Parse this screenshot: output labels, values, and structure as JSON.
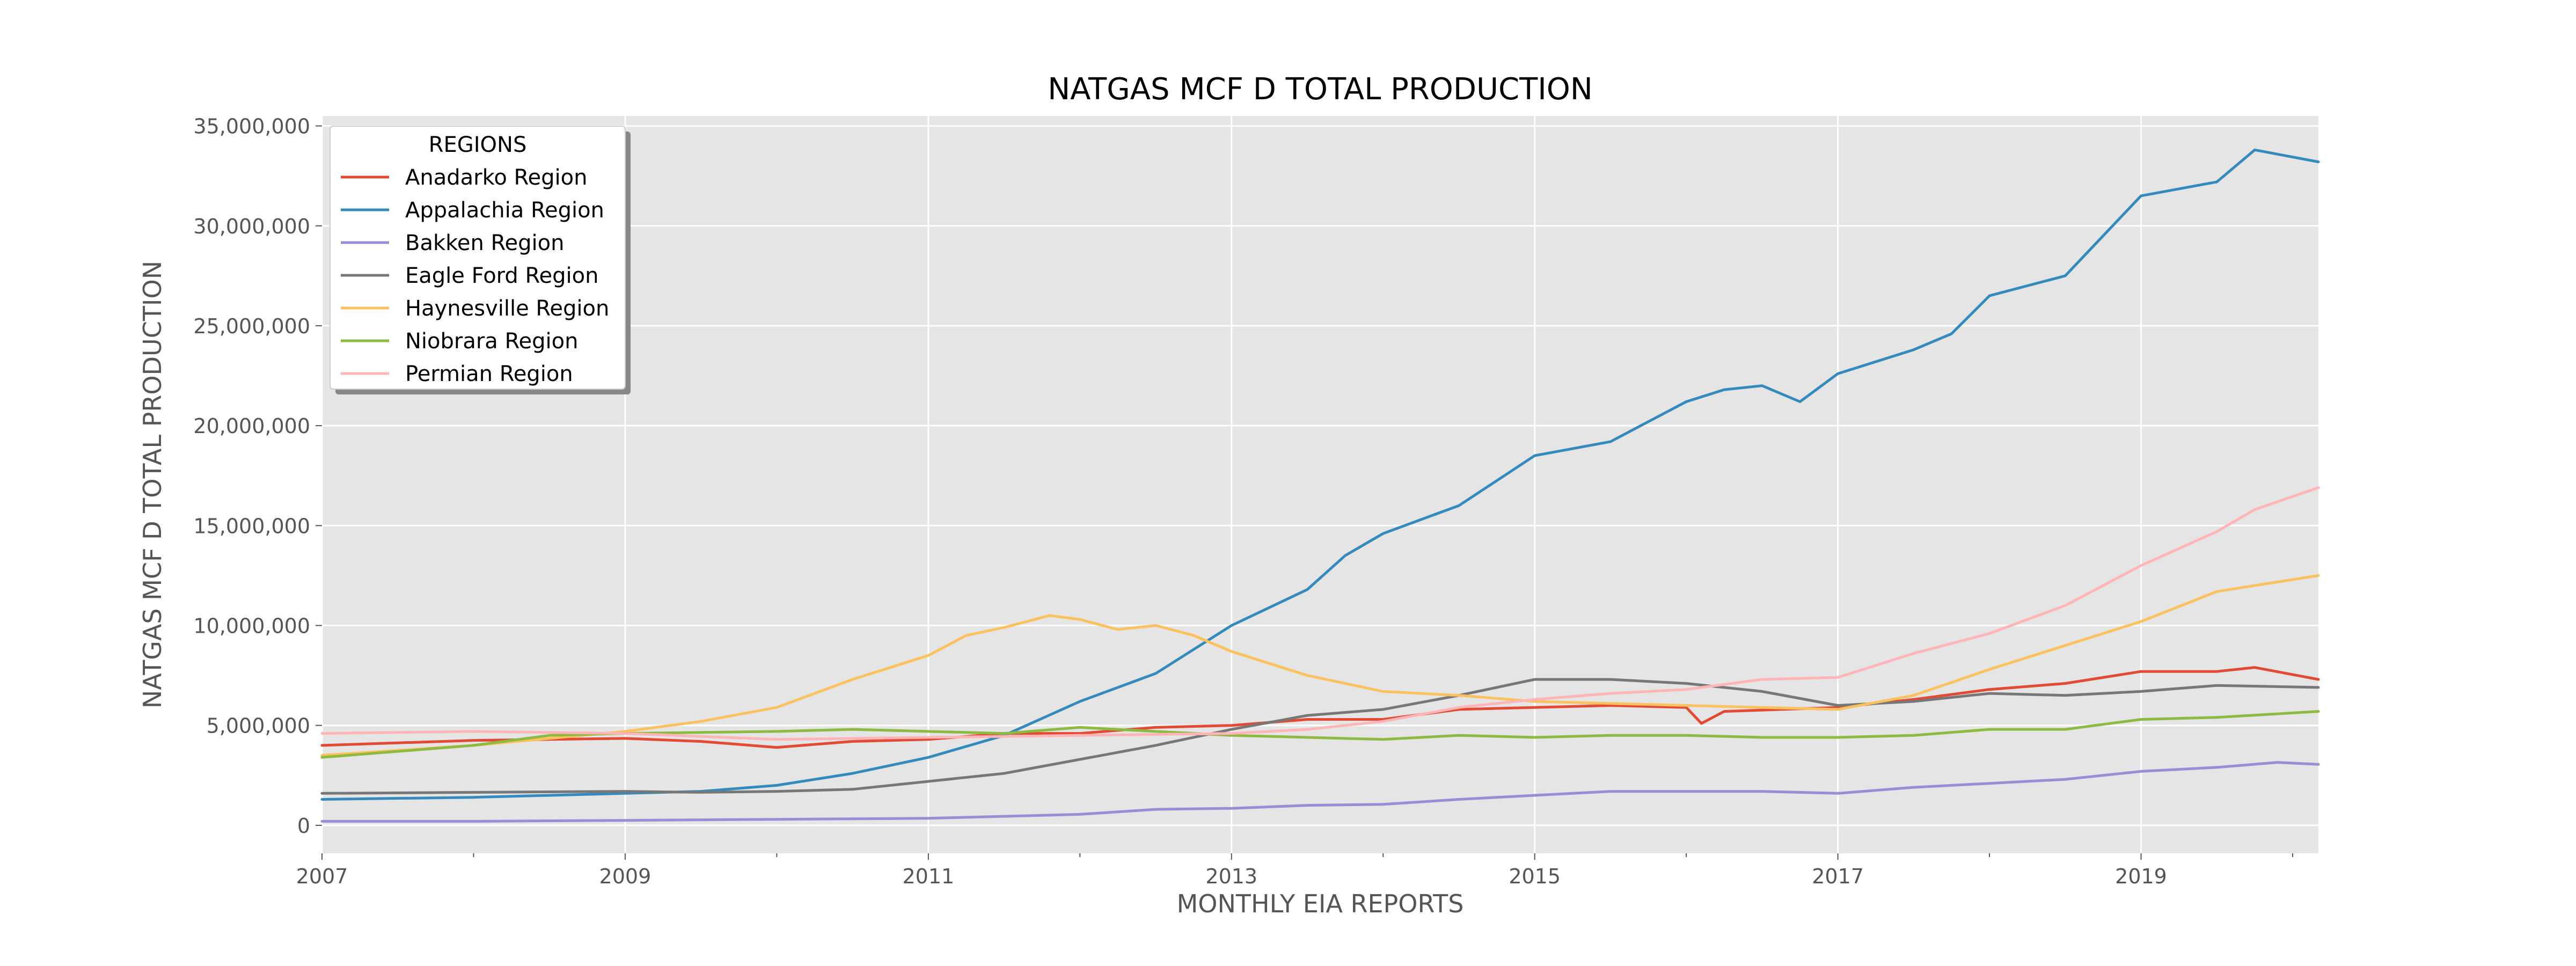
{
  "chart_data": {
    "type": "line",
    "title": "NATGAS MCF D TOTAL PRODUCTION",
    "xlabel": "MONTHLY EIA REPORTS",
    "ylabel": "NATGAS MCF D TOTAL PRODUCTION",
    "xlim": [
      2007.0,
      2020.17
    ],
    "ylim": [
      -1400000,
      35500000
    ],
    "x_ticks": [
      2007,
      2009,
      2011,
      2013,
      2015,
      2017,
      2019
    ],
    "y_ticks": [
      0,
      5000000,
      10000000,
      15000000,
      20000000,
      25000000,
      30000000,
      35000000
    ],
    "y_tick_labels": [
      "0",
      "5,000,000",
      "10,000,000",
      "15,000,000",
      "20,000,000",
      "25,000,000",
      "30,000,000",
      "35,000,000"
    ],
    "grid": true,
    "legend": {
      "title": "REGIONS",
      "placement": "top-left"
    },
    "series": [
      {
        "name": "Anadarko Region",
        "color": "#E24A33",
        "points": [
          [
            2007.0,
            4000000
          ],
          [
            2008.0,
            4250000
          ],
          [
            2008.5,
            4300000
          ],
          [
            2009.0,
            4350000
          ],
          [
            2009.5,
            4200000
          ],
          [
            2010.0,
            3900000
          ],
          [
            2010.5,
            4200000
          ],
          [
            2011.0,
            4300000
          ],
          [
            2011.5,
            4600000
          ],
          [
            2012.0,
            4600000
          ],
          [
            2012.5,
            4900000
          ],
          [
            2013.0,
            5000000
          ],
          [
            2013.5,
            5300000
          ],
          [
            2014.0,
            5300000
          ],
          [
            2014.5,
            5800000
          ],
          [
            2015.0,
            5900000
          ],
          [
            2015.5,
            6000000
          ],
          [
            2016.0,
            5900000
          ],
          [
            2016.1,
            5100000
          ],
          [
            2016.25,
            5700000
          ],
          [
            2017.0,
            5900000
          ],
          [
            2017.5,
            6300000
          ],
          [
            2018.0,
            6800000
          ],
          [
            2018.5,
            7100000
          ],
          [
            2019.0,
            7700000
          ],
          [
            2019.5,
            7700000
          ],
          [
            2019.75,
            7900000
          ],
          [
            2020.17,
            7300000
          ]
        ]
      },
      {
        "name": "Appalachia Region",
        "color": "#348ABD",
        "points": [
          [
            2007.0,
            1300000
          ],
          [
            2008.0,
            1400000
          ],
          [
            2009.0,
            1600000
          ],
          [
            2009.5,
            1700000
          ],
          [
            2010.0,
            2000000
          ],
          [
            2010.5,
            2600000
          ],
          [
            2011.0,
            3400000
          ],
          [
            2011.5,
            4500000
          ],
          [
            2012.0,
            6200000
          ],
          [
            2012.5,
            7600000
          ],
          [
            2012.75,
            8800000
          ],
          [
            2013.0,
            10000000
          ],
          [
            2013.5,
            11800000
          ],
          [
            2013.75,
            13500000
          ],
          [
            2014.0,
            14600000
          ],
          [
            2014.5,
            16000000
          ],
          [
            2015.0,
            18500000
          ],
          [
            2015.5,
            19200000
          ],
          [
            2016.0,
            21200000
          ],
          [
            2016.25,
            21800000
          ],
          [
            2016.5,
            22000000
          ],
          [
            2016.75,
            21200000
          ],
          [
            2017.0,
            22600000
          ],
          [
            2017.5,
            23800000
          ],
          [
            2017.75,
            24600000
          ],
          [
            2018.0,
            26500000
          ],
          [
            2018.5,
            27500000
          ],
          [
            2018.75,
            29500000
          ],
          [
            2019.0,
            31500000
          ],
          [
            2019.5,
            32200000
          ],
          [
            2019.75,
            33800000
          ],
          [
            2020.17,
            33200000
          ]
        ]
      },
      {
        "name": "Bakken Region",
        "color": "#988ED5",
        "points": [
          [
            2007.0,
            200000
          ],
          [
            2008.0,
            200000
          ],
          [
            2009.0,
            250000
          ],
          [
            2010.0,
            300000
          ],
          [
            2011.0,
            350000
          ],
          [
            2011.5,
            450000
          ],
          [
            2012.0,
            550000
          ],
          [
            2012.5,
            800000
          ],
          [
            2013.0,
            850000
          ],
          [
            2013.5,
            1000000
          ],
          [
            2014.0,
            1050000
          ],
          [
            2014.5,
            1300000
          ],
          [
            2015.0,
            1500000
          ],
          [
            2015.5,
            1700000
          ],
          [
            2016.0,
            1700000
          ],
          [
            2016.5,
            1700000
          ],
          [
            2017.0,
            1600000
          ],
          [
            2017.5,
            1900000
          ],
          [
            2018.0,
            2100000
          ],
          [
            2018.5,
            2300000
          ],
          [
            2019.0,
            2700000
          ],
          [
            2019.5,
            2900000
          ],
          [
            2019.9,
            3150000
          ],
          [
            2020.17,
            3050000
          ]
        ]
      },
      {
        "name": "Eagle Ford Region",
        "color": "#777777",
        "points": [
          [
            2007.0,
            1600000
          ],
          [
            2008.0,
            1650000
          ],
          [
            2009.0,
            1700000
          ],
          [
            2009.5,
            1650000
          ],
          [
            2010.0,
            1700000
          ],
          [
            2010.5,
            1800000
          ],
          [
            2011.0,
            2200000
          ],
          [
            2011.5,
            2600000
          ],
          [
            2012.0,
            3300000
          ],
          [
            2012.5,
            4000000
          ],
          [
            2013.0,
            4800000
          ],
          [
            2013.5,
            5500000
          ],
          [
            2014.0,
            5800000
          ],
          [
            2014.5,
            6500000
          ],
          [
            2015.0,
            7300000
          ],
          [
            2015.5,
            7300000
          ],
          [
            2016.0,
            7100000
          ],
          [
            2016.5,
            6700000
          ],
          [
            2017.0,
            6000000
          ],
          [
            2017.5,
            6200000
          ],
          [
            2018.0,
            6600000
          ],
          [
            2018.5,
            6500000
          ],
          [
            2019.0,
            6700000
          ],
          [
            2019.5,
            7000000
          ],
          [
            2020.17,
            6900000
          ]
        ]
      },
      {
        "name": "Haynesville Region",
        "color": "#FBC15E",
        "points": [
          [
            2007.0,
            3500000
          ],
          [
            2008.0,
            4000000
          ],
          [
            2009.0,
            4700000
          ],
          [
            2009.5,
            5200000
          ],
          [
            2010.0,
            5900000
          ],
          [
            2010.5,
            7300000
          ],
          [
            2011.0,
            8500000
          ],
          [
            2011.25,
            9500000
          ],
          [
            2011.5,
            9900000
          ],
          [
            2011.8,
            10500000
          ],
          [
            2012.0,
            10300000
          ],
          [
            2012.25,
            9800000
          ],
          [
            2012.5,
            10000000
          ],
          [
            2012.75,
            9500000
          ],
          [
            2013.0,
            8700000
          ],
          [
            2013.5,
            7500000
          ],
          [
            2014.0,
            6700000
          ],
          [
            2014.5,
            6500000
          ],
          [
            2015.0,
            6200000
          ],
          [
            2015.5,
            6100000
          ],
          [
            2016.0,
            6000000
          ],
          [
            2016.5,
            5900000
          ],
          [
            2017.0,
            5800000
          ],
          [
            2017.5,
            6500000
          ],
          [
            2018.0,
            7800000
          ],
          [
            2018.5,
            9000000
          ],
          [
            2019.0,
            10200000
          ],
          [
            2019.5,
            11700000
          ],
          [
            2020.17,
            12500000
          ]
        ]
      },
      {
        "name": "Niobrara Region",
        "color": "#8EBA42",
        "points": [
          [
            2007.0,
            3400000
          ],
          [
            2008.0,
            4000000
          ],
          [
            2008.5,
            4500000
          ],
          [
            2009.0,
            4600000
          ],
          [
            2010.0,
            4700000
          ],
          [
            2010.5,
            4800000
          ],
          [
            2011.0,
            4700000
          ],
          [
            2011.5,
            4600000
          ],
          [
            2012.0,
            4900000
          ],
          [
            2012.5,
            4700000
          ],
          [
            2013.0,
            4500000
          ],
          [
            2013.5,
            4400000
          ],
          [
            2014.0,
            4300000
          ],
          [
            2014.5,
            4500000
          ],
          [
            2015.0,
            4400000
          ],
          [
            2015.5,
            4500000
          ],
          [
            2016.0,
            4500000
          ],
          [
            2016.5,
            4400000
          ],
          [
            2017.0,
            4400000
          ],
          [
            2017.5,
            4500000
          ],
          [
            2018.0,
            4800000
          ],
          [
            2018.5,
            4800000
          ],
          [
            2019.0,
            5300000
          ],
          [
            2019.5,
            5400000
          ],
          [
            2020.17,
            5700000
          ]
        ]
      },
      {
        "name": "Permian Region",
        "color": "#FFB5B8",
        "points": [
          [
            2007.0,
            4600000
          ],
          [
            2008.0,
            4700000
          ],
          [
            2009.0,
            4600000
          ],
          [
            2010.0,
            4300000
          ],
          [
            2011.0,
            4400000
          ],
          [
            2012.0,
            4500000
          ],
          [
            2013.0,
            4600000
          ],
          [
            2013.5,
            4800000
          ],
          [
            2014.0,
            5200000
          ],
          [
            2014.5,
            5900000
          ],
          [
            2015.0,
            6300000
          ],
          [
            2015.5,
            6600000
          ],
          [
            2016.0,
            6800000
          ],
          [
            2016.5,
            7300000
          ],
          [
            2017.0,
            7400000
          ],
          [
            2017.5,
            8600000
          ],
          [
            2018.0,
            9600000
          ],
          [
            2018.5,
            11000000
          ],
          [
            2019.0,
            13000000
          ],
          [
            2019.5,
            14700000
          ],
          [
            2019.75,
            15800000
          ],
          [
            2020.17,
            16900000
          ]
        ]
      }
    ]
  }
}
